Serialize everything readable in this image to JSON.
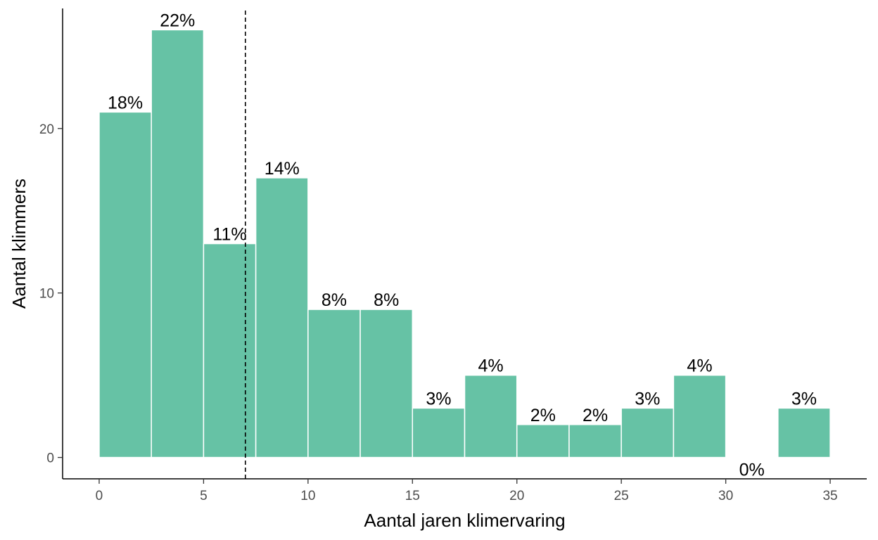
{
  "chart_data": {
    "type": "bar",
    "bin_width": 2.5,
    "bins": [
      {
        "x_start": 0,
        "x_end": 2.5,
        "count": 21,
        "label": "18%"
      },
      {
        "x_start": 2.5,
        "x_end": 5,
        "count": 26,
        "label": "22%"
      },
      {
        "x_start": 5,
        "x_end": 7.5,
        "count": 13,
        "label": "11%"
      },
      {
        "x_start": 7.5,
        "x_end": 10,
        "count": 17,
        "label": "14%"
      },
      {
        "x_start": 10,
        "x_end": 12.5,
        "count": 9,
        "label": "8%"
      },
      {
        "x_start": 12.5,
        "x_end": 15,
        "count": 9,
        "label": "8%"
      },
      {
        "x_start": 15,
        "x_end": 17.5,
        "count": 3,
        "label": "3%"
      },
      {
        "x_start": 17.5,
        "x_end": 20,
        "count": 5,
        "label": "4%"
      },
      {
        "x_start": 20,
        "x_end": 22.5,
        "count": 2,
        "label": "2%"
      },
      {
        "x_start": 22.5,
        "x_end": 25,
        "count": 2,
        "label": "2%"
      },
      {
        "x_start": 25,
        "x_end": 27.5,
        "count": 3,
        "label": "3%"
      },
      {
        "x_start": 27.5,
        "x_end": 30,
        "count": 5,
        "label": "4%"
      },
      {
        "x_start": 30,
        "x_end": 32.5,
        "count": 0,
        "label": "0%"
      },
      {
        "x_start": 32.5,
        "x_end": 35,
        "count": 3,
        "label": "3%"
      }
    ],
    "xlabel": "Aantal jaren klimervaring",
    "ylabel": "Aantal klimmers",
    "xlim": [
      -1.75,
      36.75
    ],
    "ylim": [
      -1.3,
      27.3
    ],
    "x_ticks": [
      0,
      5,
      10,
      15,
      20,
      25,
      30,
      35
    ],
    "y_ticks": [
      0,
      10,
      20
    ],
    "reference_line": {
      "x": 7,
      "style": "dashed"
    },
    "grid": false,
    "legend": "none",
    "colors": {
      "bar_fill": "#66c2a5",
      "bar_outline": "#ffffff",
      "axis": "#000000",
      "tick_text": "#4d4d4d",
      "text": "#000000"
    }
  }
}
